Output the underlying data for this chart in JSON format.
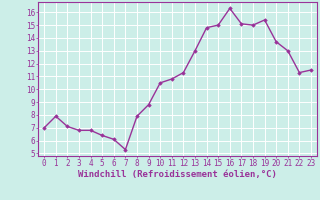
{
  "x": [
    0,
    1,
    2,
    3,
    4,
    5,
    6,
    7,
    8,
    9,
    10,
    11,
    12,
    13,
    14,
    15,
    16,
    17,
    18,
    19,
    20,
    21,
    22,
    23
  ],
  "y": [
    7.0,
    7.9,
    7.1,
    6.8,
    6.8,
    6.4,
    6.1,
    5.3,
    7.9,
    8.8,
    10.5,
    10.8,
    11.3,
    13.0,
    14.8,
    15.0,
    16.3,
    15.1,
    15.0,
    15.4,
    13.7,
    13.0,
    11.3,
    11.5
  ],
  "line_color": "#993399",
  "marker": "D",
  "marker_size": 1.8,
  "linewidth": 1.0,
  "xlabel": "Windchill (Refroidissement éolien,°C)",
  "xlabel_fontsize": 6.5,
  "ylabel_ticks": [
    5,
    6,
    7,
    8,
    9,
    10,
    11,
    12,
    13,
    14,
    15,
    16
  ],
  "xlim": [
    -0.5,
    23.5
  ],
  "ylim": [
    4.8,
    16.8
  ],
  "background_color": "#cceee8",
  "grid_color": "#ffffff",
  "tick_color": "#993399",
  "tick_fontsize": 5.5,
  "xlabel_color": "#993399",
  "spine_color": "#993399"
}
